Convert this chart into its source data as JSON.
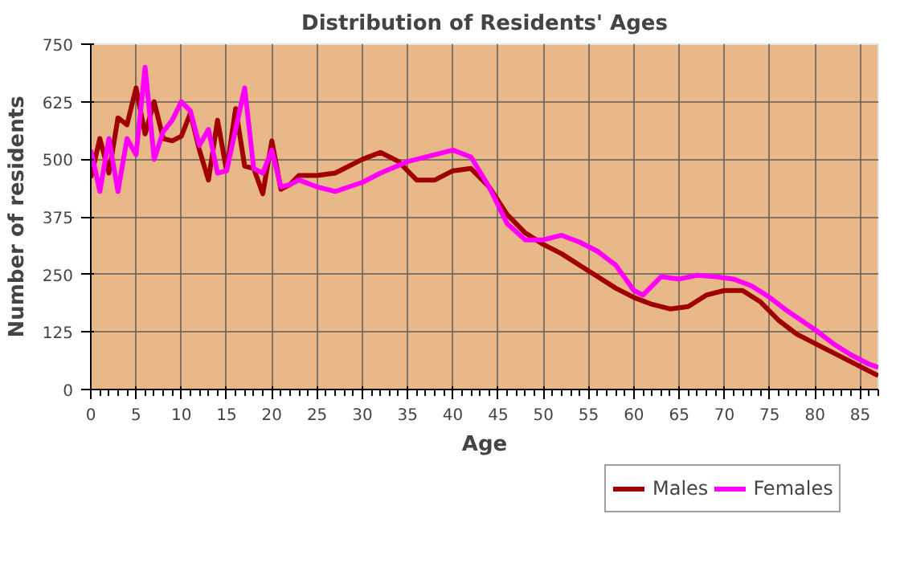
{
  "chart_data": {
    "type": "line",
    "title": "Distribution of Residents' Ages",
    "xlabel": "Age",
    "ylabel": "Number of residents",
    "xlim": [
      0,
      87
    ],
    "xticks": [
      0,
      5,
      10,
      15,
      20,
      25,
      30,
      35,
      40,
      45,
      50,
      55,
      60,
      65,
      70,
      75,
      80,
      85
    ],
    "ylim": [
      0,
      750
    ],
    "yticks": [
      0,
      125,
      250,
      375,
      500,
      625,
      750
    ],
    "grid": true,
    "legend": "bottom",
    "marker": "none",
    "line_style": "solid",
    "series": [
      {
        "name": "Males",
        "color": "#a00000",
        "x": [
          0,
          1,
          2,
          3,
          4,
          5,
          6,
          7,
          8,
          9,
          10,
          11,
          12,
          13,
          14,
          15,
          16,
          17,
          18,
          19,
          20,
          21,
          22,
          23,
          25,
          27,
          30,
          32,
          34,
          36,
          38,
          40,
          42,
          44,
          46,
          48,
          50,
          52,
          54,
          56,
          58,
          60,
          62,
          64,
          66,
          68,
          70,
          72,
          74,
          76,
          78,
          80,
          82,
          84,
          86,
          87
        ],
        "values": [
          460,
          545,
          470,
          590,
          575,
          655,
          555,
          625,
          545,
          540,
          550,
          600,
          520,
          455,
          585,
          475,
          610,
          485,
          480,
          425,
          540,
          435,
          445,
          465,
          465,
          470,
          500,
          515,
          495,
          455,
          455,
          475,
          480,
          440,
          380,
          340,
          315,
          295,
          270,
          245,
          220,
          200,
          185,
          175,
          180,
          205,
          215,
          215,
          190,
          150,
          120,
          100,
          80,
          60,
          40,
          30
        ]
      },
      {
        "name": "Females",
        "color": "#ff00ff",
        "x": [
          0,
          1,
          2,
          3,
          4,
          5,
          6,
          7,
          8,
          9,
          10,
          11,
          12,
          13,
          14,
          15,
          16,
          17,
          18,
          19,
          20,
          21,
          22,
          23,
          25,
          27,
          30,
          32,
          35,
          38,
          40,
          42,
          44,
          46,
          48,
          50,
          52,
          54,
          56,
          58,
          60,
          61,
          63,
          65,
          67,
          69,
          71,
          73,
          75,
          77,
          80,
          82,
          84,
          86,
          87
        ],
        "values": [
          520,
          430,
          545,
          430,
          545,
          510,
          700,
          500,
          560,
          585,
          625,
          605,
          530,
          565,
          470,
          475,
          565,
          655,
          480,
          470,
          520,
          440,
          445,
          455,
          440,
          430,
          450,
          470,
          495,
          510,
          520,
          505,
          440,
          360,
          325,
          325,
          335,
          320,
          300,
          270,
          215,
          205,
          245,
          240,
          248,
          245,
          240,
          225,
          200,
          170,
          130,
          100,
          75,
          55,
          48
        ]
      }
    ]
  }
}
